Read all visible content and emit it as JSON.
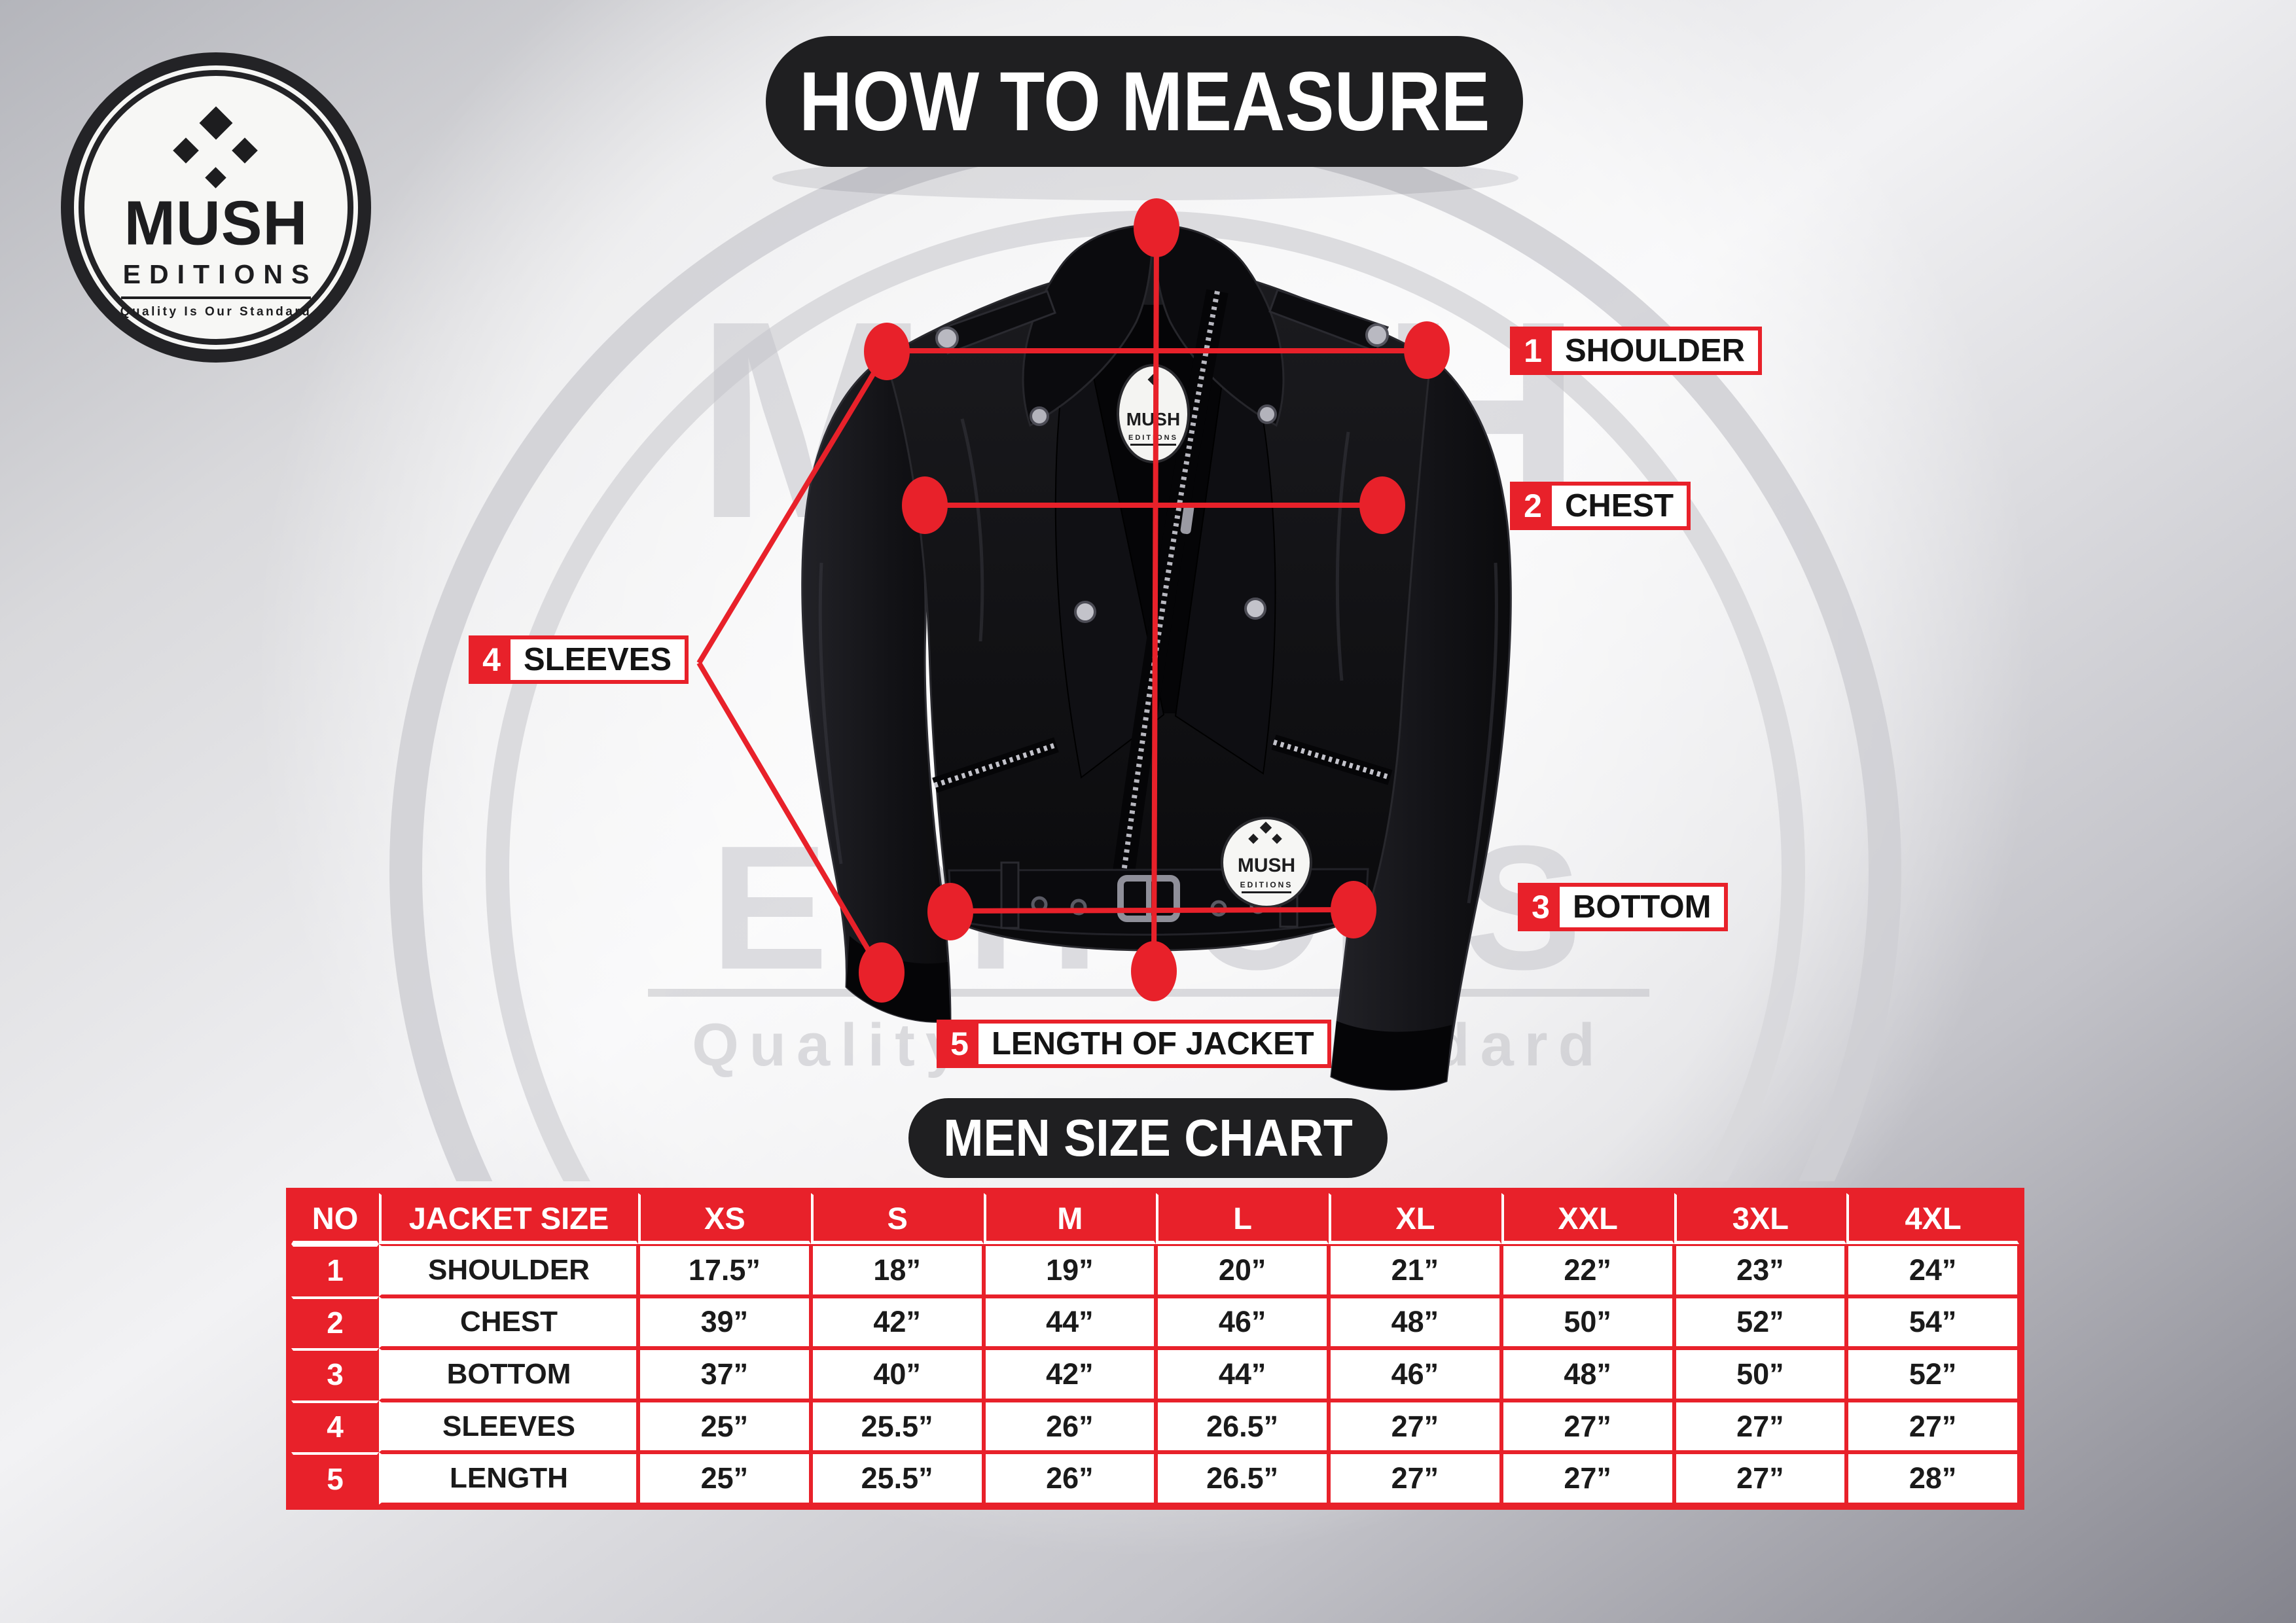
{
  "colors": {
    "red": "#e8212a",
    "dark_pill": "#1f1f21",
    "table_text": "#1a1a1a"
  },
  "brand": {
    "name": "MUSH",
    "line2": "EDITIONS",
    "tagline": "Quality Is Our Standard"
  },
  "header": {
    "title": "HOW TO MEASURE"
  },
  "watermark": {
    "name": "MUSH",
    "line2": "EDITIONS",
    "tagline": "Quality Is Our Standard"
  },
  "measure_labels": [
    {
      "num": "1",
      "text": "SHOULDER"
    },
    {
      "num": "2",
      "text": "CHEST"
    },
    {
      "num": "3",
      "text": "BOTTOM"
    },
    {
      "num": "4",
      "text": "SLEEVES"
    },
    {
      "num": "5",
      "text": "LENGTH OF JACKET"
    }
  ],
  "size_chart": {
    "title": "MEN SIZE CHART",
    "columns": [
      "NO",
      "JACKET SIZE",
      "XS",
      "S",
      "M",
      "L",
      "XL",
      "XXL",
      "3XL",
      "4XL"
    ],
    "rows": [
      {
        "no": "1",
        "label": "SHOULDER",
        "values": [
          "17.5”",
          "18”",
          "19”",
          "20”",
          "21”",
          "22”",
          "23”",
          "24”"
        ]
      },
      {
        "no": "2",
        "label": "CHEST",
        "values": [
          "39”",
          "42”",
          "44”",
          "46”",
          "48”",
          "50”",
          "52”",
          "54”"
        ]
      },
      {
        "no": "3",
        "label": "BOTTOM",
        "values": [
          "37”",
          "40”",
          "42”",
          "44”",
          "46”",
          "48”",
          "50”",
          "52”"
        ]
      },
      {
        "no": "4",
        "label": "SLEEVES",
        "values": [
          "25”",
          "25.5”",
          "26”",
          "26.5”",
          "27”",
          "27”",
          "27”",
          "27”"
        ]
      },
      {
        "no": "5",
        "label": "LENGTH",
        "values": [
          "25”",
          "25.5”",
          "26”",
          "26.5”",
          "27”",
          "27”",
          "27”",
          "28”"
        ]
      }
    ]
  }
}
